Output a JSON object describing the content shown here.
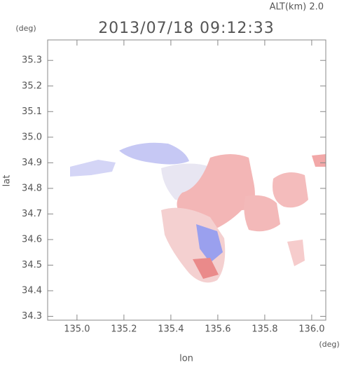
{
  "chart_data": {
    "type": "map",
    "title": "2013/07/18 09:12:33",
    "altitude_label": "ALT(km) 2.0",
    "y_unit": "(deg)",
    "x_unit": "(deg)",
    "x_label": "lon",
    "y_label": "lat",
    "xlim": [
      134.875,
      136.06
    ],
    "ylim": [
      34.285,
      35.38
    ],
    "xticks": [
      {
        "value": 135,
        "label": "135.0"
      },
      135.2,
      135.4,
      135.6,
      135.8,
      {
        "value": 136,
        "label": "136.0"
      }
    ],
    "yticks": [
      34.3,
      34.4,
      34.5,
      34.6,
      34.7,
      34.8,
      34.9,
      {
        "value": 35,
        "label": "35.0"
      },
      35.1,
      35.2,
      35.3
    ]
  }
}
